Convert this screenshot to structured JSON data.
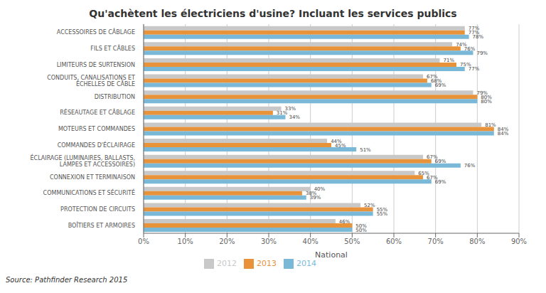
{
  "chart_data": {
    "type": "bar",
    "orientation": "horizontal",
    "title": "Qu'achètent les électriciens d'usine? Incluant les services publics",
    "xlabel": "National",
    "annotations": [
      "Source:  Pathfinder Research 2015"
    ],
    "categories": [
      "ACCESSOIRES DE CÂBLAGE",
      "FILS ET CÂBLES",
      "LIMITEURS DE SURTENSION",
      "CONDUITS, CANALISATIONS ET ÉCHELLES DE CÂBLE",
      "DISTRIBUTION",
      "RÉSEAUTAGE ET CÂBLAGE",
      "MOTEURS ET COMMANDES",
      "COMMANDES D'ÉCLAIRAGE",
      "ÉCLAIRAGE (LUMINAIRES, BALLASTS, LAMPES ET ACCESSOIRES)",
      "CONNEXION ET TERMINAISON",
      "COMMUNICATIONS ET SÉCURITÉ",
      "PROTECTION DE CIRCUITS",
      "BOÎTIERS ET ARMOIRES"
    ],
    "series": [
      {
        "name": "2012",
        "color": "#c8c8c8",
        "values": [
          77,
          74,
          71,
          67,
          79,
          33,
          81,
          44,
          67,
          65,
          40,
          52,
          46
        ],
        "value_labels": [
          "77%",
          "74%",
          "71%",
          "67%",
          "79%",
          "33%",
          "81%",
          "44%",
          "67%",
          "65%",
          "40%",
          "52%",
          "46%"
        ]
      },
      {
        "name": "2013",
        "color": "#e8923a",
        "values": [
          77,
          76,
          75,
          68,
          80,
          31,
          84,
          45,
          69,
          67,
          38,
          55,
          50
        ],
        "value_labels": [
          "77%",
          "76%",
          "75%",
          "68%",
          "80%",
          "31%",
          "84%",
          "45%",
          "69%",
          "67%",
          "38%",
          "55%",
          "50%"
        ]
      },
      {
        "name": "2014",
        "color": "#7ab8d8",
        "values": [
          78,
          79,
          77,
          69,
          80,
          34,
          84,
          51,
          76,
          69,
          39,
          55,
          50
        ],
        "value_labels": [
          "78%",
          "79%",
          "77%",
          "69%",
          "80%",
          "34%",
          "84%",
          "51%",
          "76%",
          "69%",
          "39%",
          "55%",
          "50%"
        ]
      }
    ],
    "xlim": [
      0,
      90
    ],
    "xticks": [
      {
        "value": 0,
        "label": "0%"
      },
      {
        "value": 10,
        "label": "10%"
      },
      {
        "value": 20,
        "label": "20%"
      },
      {
        "value": 30,
        "label": "30%"
      },
      {
        "value": 40,
        "label": "40%"
      },
      {
        "value": 50,
        "label": "50%"
      },
      {
        "value": 60,
        "label": "60%"
      },
      {
        "value": 70,
        "label": "70%"
      },
      {
        "value": 80,
        "label": "80%"
      },
      {
        "value": 90,
        "label": "90%"
      }
    ],
    "grid": true,
    "legend": "bottom",
    "data_labels": true
  }
}
